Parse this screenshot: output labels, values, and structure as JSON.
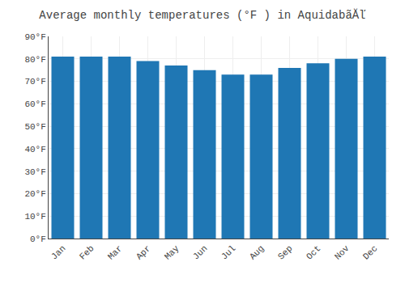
{
  "chart_data": {
    "type": "bar",
    "title": "Average monthly temperatures (°F ) in AquidabãĂľ",
    "categories": [
      "Jan",
      "Feb",
      "Mar",
      "Apr",
      "May",
      "Jun",
      "Jul",
      "Aug",
      "Sep",
      "Oct",
      "Nov",
      "Dec"
    ],
    "values": [
      81,
      81,
      81,
      79,
      77,
      75,
      73,
      73,
      76,
      78,
      80,
      81
    ],
    "ylim": [
      0,
      90
    ],
    "yticks": [
      {
        "value": 0,
        "label": "0°F"
      },
      {
        "value": 10,
        "label": "10°F"
      },
      {
        "value": 20,
        "label": "20°F"
      },
      {
        "value": 30,
        "label": "30°F"
      },
      {
        "value": 40,
        "label": "40°F"
      },
      {
        "value": 50,
        "label": "50°F"
      },
      {
        "value": 60,
        "label": "60°F"
      },
      {
        "value": 70,
        "label": "70°F"
      },
      {
        "value": 80,
        "label": "80°F"
      },
      {
        "value": 90,
        "label": "90°F"
      }
    ],
    "grid": true
  }
}
